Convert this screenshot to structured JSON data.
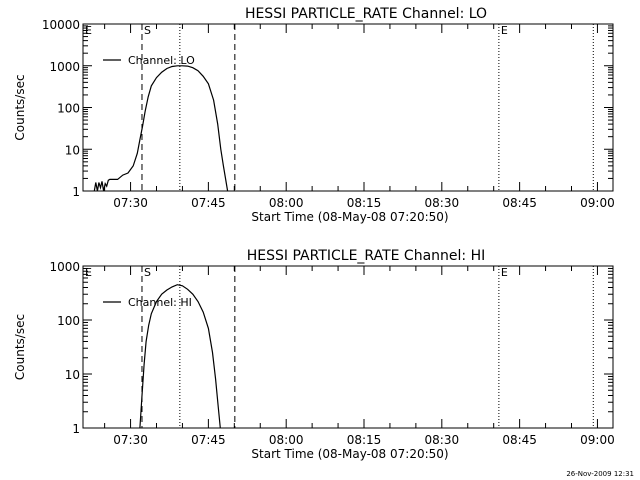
{
  "chart_data": [
    {
      "type": "line",
      "title": "HESSI PARTICLE_RATE Channel: LO",
      "xlabel": "Start Time (08-May-08 07:20:50)",
      "ylabel": "Counts/sec",
      "yscale": "log",
      "ylim": [
        1,
        10000
      ],
      "ytick_values": [
        1,
        10,
        100,
        1000,
        10000
      ],
      "ytick_labels": [
        "1",
        "10",
        "100",
        "1000",
        "10000"
      ],
      "xlim_minutes": [
        440.83,
        543.0
      ],
      "xtick_values": [
        450,
        465,
        480,
        495,
        510,
        525,
        540
      ],
      "xtick_labels": [
        "07:30",
        "07:45",
        "08:00",
        "08:15",
        "08:30",
        "08:45",
        "09:00"
      ],
      "legend": [
        "Channel: LO"
      ],
      "markers": [
        {
          "label": "E",
          "x": 440.83,
          "style": "dotted"
        },
        {
          "label": "S",
          "x": 452.2,
          "style": "dashed"
        },
        {
          "label": "",
          "x": 459.5,
          "style": "dotted"
        },
        {
          "label": "",
          "x": 470.1,
          "style": "dashed"
        },
        {
          "label": "E",
          "x": 521.0,
          "style": "dotted"
        },
        {
          "label": "",
          "x": 539.2,
          "style": "dotted"
        }
      ],
      "series": [
        {
          "name": "Channel: LO",
          "x": [
            443.0,
            443.3,
            443.6,
            443.9,
            444.2,
            444.5,
            444.8,
            445.1,
            445.4,
            445.7,
            446.0,
            446.5,
            447.5,
            448.5,
            449.5,
            450.5,
            451.3,
            451.8,
            452.3,
            452.8,
            453.4,
            454.0,
            455.0,
            456.0,
            457.0,
            458.0,
            459.0,
            460.0,
            461.0,
            462.0,
            463.0,
            464.0,
            465.0,
            466.0,
            466.8,
            467.4,
            467.9,
            468.3,
            468.7
          ],
          "y": [
            1.0,
            1.6,
            1.0,
            1.6,
            1.2,
            1.7,
            1.0,
            1.5,
            1.3,
            1.8,
            1.9,
            1.9,
            1.9,
            2.4,
            2.7,
            4.0,
            8.0,
            17,
            35,
            80,
            180,
            330,
            520,
            700,
            860,
            960,
            1000,
            1000,
            980,
            900,
            760,
            560,
            370,
            150,
            40,
            10,
            4,
            2,
            1
          ]
        }
      ]
    },
    {
      "type": "line",
      "title": "HESSI PARTICLE_RATE Channel: HI",
      "xlabel": "Start Time (08-May-08 07:20:50)",
      "ylabel": "Counts/sec",
      "yscale": "log",
      "ylim": [
        1,
        1000
      ],
      "ytick_values": [
        1,
        10,
        100,
        1000
      ],
      "ytick_labels": [
        "1",
        "10",
        "100",
        "1000"
      ],
      "xlim_minutes": [
        440.83,
        543.0
      ],
      "xtick_values": [
        450,
        465,
        480,
        495,
        510,
        525,
        540
      ],
      "xtick_labels": [
        "07:30",
        "07:45",
        "08:00",
        "08:15",
        "08:30",
        "08:45",
        "09:00"
      ],
      "legend": [
        "Channel: HI"
      ],
      "markers": [
        {
          "label": "E",
          "x": 440.83,
          "style": "dotted"
        },
        {
          "label": "S",
          "x": 452.2,
          "style": "dashed"
        },
        {
          "label": "",
          "x": 459.5,
          "style": "dotted"
        },
        {
          "label": "",
          "x": 470.1,
          "style": "dashed"
        },
        {
          "label": "E",
          "x": 521.0,
          "style": "dotted"
        },
        {
          "label": "",
          "x": 539.2,
          "style": "dotted"
        }
      ],
      "series": [
        {
          "name": "Channel: HI",
          "x": [
            451.8,
            452.2,
            452.6,
            453.0,
            453.5,
            454.0,
            455.0,
            456.0,
            457.0,
            458.0,
            459.0,
            460.0,
            461.0,
            462.0,
            463.0,
            464.0,
            465.0,
            465.8,
            466.4,
            466.9,
            467.3
          ],
          "y": [
            1.0,
            4.0,
            15,
            40,
            80,
            130,
            220,
            300,
            360,
            410,
            450,
            430,
            370,
            300,
            220,
            140,
            70,
            25,
            8,
            2.5,
            1
          ]
        }
      ]
    }
  ],
  "footer": {
    "date_stamp": "26-Nov-2009 12:31"
  }
}
